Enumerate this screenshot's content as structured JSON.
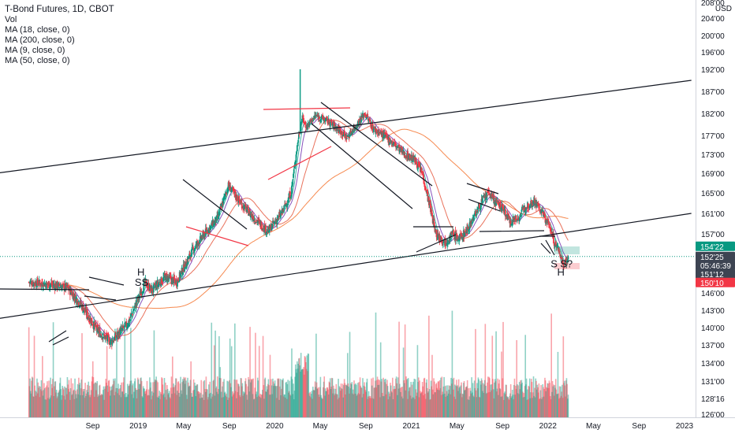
{
  "legend": {
    "title": "T-Bond Futures, 1D, CBOT",
    "lines": [
      "Vol",
      "MA (18, close, 0)",
      "MA (200, close, 0)",
      "MA (9, close, 0)",
      "MA (50, close, 0)"
    ]
  },
  "currency": "USD",
  "chart_data": {
    "type": "candlestick",
    "x_ticks": [
      {
        "label": "Sep",
        "t": 2018.667
      },
      {
        "label": "2019",
        "t": 2019.0
      },
      {
        "label": "May",
        "t": 2019.333
      },
      {
        "label": "Sep",
        "t": 2019.667
      },
      {
        "label": "2020",
        "t": 2020.0
      },
      {
        "label": "May",
        "t": 2020.333
      },
      {
        "label": "Sep",
        "t": 2020.667
      },
      {
        "label": "2021",
        "t": 2021.0
      },
      {
        "label": "May",
        "t": 2021.333
      },
      {
        "label": "Sep",
        "t": 2021.667
      },
      {
        "label": "2022",
        "t": 2022.0
      },
      {
        "label": "May",
        "t": 2022.333
      },
      {
        "label": "Sep",
        "t": 2022.667
      },
      {
        "label": "2023",
        "t": 2023.0
      }
    ],
    "y_ticks": [
      {
        "label": "208'00",
        "v": 208
      },
      {
        "label": "204'00",
        "v": 204
      },
      {
        "label": "200'00",
        "v": 200
      },
      {
        "label": "196'00",
        "v": 196
      },
      {
        "label": "192'00",
        "v": 192
      },
      {
        "label": "187'00",
        "v": 187
      },
      {
        "label": "182'00",
        "v": 182
      },
      {
        "label": "177'00",
        "v": 177
      },
      {
        "label": "173'00",
        "v": 173
      },
      {
        "label": "169'00",
        "v": 169
      },
      {
        "label": "165'00",
        "v": 165
      },
      {
        "label": "161'00",
        "v": 161
      },
      {
        "label": "157'00",
        "v": 157
      },
      {
        "label": "146'00",
        "v": 146
      },
      {
        "label": "143'00",
        "v": 143
      },
      {
        "label": "140'00",
        "v": 140
      },
      {
        "label": "137'00",
        "v": 137
      },
      {
        "label": "134'00",
        "v": 134
      },
      {
        "label": "131'00",
        "v": 131
      },
      {
        "label": "128'16",
        "v": 128.5
      },
      {
        "label": "126'00",
        "v": 126
      }
    ],
    "price_key_points": [
      {
        "t": 2018.2,
        "v": 148.0
      },
      {
        "t": 2018.35,
        "v": 147.6
      },
      {
        "t": 2018.48,
        "v": 147.0
      },
      {
        "t": 2018.58,
        "v": 144.0
      },
      {
        "t": 2018.7,
        "v": 139.5
      },
      {
        "t": 2018.8,
        "v": 137.5
      },
      {
        "t": 2018.92,
        "v": 140.5
      },
      {
        "t": 2019.0,
        "v": 145.0
      },
      {
        "t": 2019.05,
        "v": 147.8
      },
      {
        "t": 2019.1,
        "v": 146.5
      },
      {
        "t": 2019.2,
        "v": 149.0
      },
      {
        "t": 2019.28,
        "v": 148.0
      },
      {
        "t": 2019.4,
        "v": 154.0
      },
      {
        "t": 2019.5,
        "v": 157.5
      },
      {
        "t": 2019.58,
        "v": 160.0
      },
      {
        "t": 2019.66,
        "v": 166.5
      },
      {
        "t": 2019.75,
        "v": 163.0
      },
      {
        "t": 2019.85,
        "v": 160.0
      },
      {
        "t": 2019.95,
        "v": 157.5
      },
      {
        "t": 2020.05,
        "v": 161.0
      },
      {
        "t": 2020.12,
        "v": 165.0
      },
      {
        "t": 2020.17,
        "v": 176.0
      },
      {
        "t": 2020.2,
        "v": 181.0
      },
      {
        "t": 2020.23,
        "v": 179.0
      },
      {
        "t": 2020.3,
        "v": 181.5
      },
      {
        "t": 2020.4,
        "v": 180.0
      },
      {
        "t": 2020.48,
        "v": 178.0
      },
      {
        "t": 2020.53,
        "v": 176.5
      },
      {
        "t": 2020.6,
        "v": 179.5
      },
      {
        "t": 2020.66,
        "v": 182.0
      },
      {
        "t": 2020.72,
        "v": 178.5
      },
      {
        "t": 2020.8,
        "v": 177.0
      },
      {
        "t": 2020.88,
        "v": 175.0
      },
      {
        "t": 2020.95,
        "v": 173.0
      },
      {
        "t": 2021.02,
        "v": 172.0
      },
      {
        "t": 2021.08,
        "v": 169.0
      },
      {
        "t": 2021.13,
        "v": 163.0
      },
      {
        "t": 2021.18,
        "v": 157.0
      },
      {
        "t": 2021.25,
        "v": 155.5
      },
      {
        "t": 2021.3,
        "v": 157.0
      },
      {
        "t": 2021.35,
        "v": 156.0
      },
      {
        "t": 2021.4,
        "v": 157.5
      },
      {
        "t": 2021.47,
        "v": 161.0
      },
      {
        "t": 2021.52,
        "v": 163.5
      },
      {
        "t": 2021.57,
        "v": 165.0
      },
      {
        "t": 2021.62,
        "v": 163.0
      },
      {
        "t": 2021.67,
        "v": 162.0
      },
      {
        "t": 2021.72,
        "v": 159.5
      },
      {
        "t": 2021.78,
        "v": 160.0
      },
      {
        "t": 2021.84,
        "v": 162.5
      },
      {
        "t": 2021.9,
        "v": 163.5
      },
      {
        "t": 2021.96,
        "v": 161.0
      },
      {
        "t": 2022.02,
        "v": 158.0
      },
      {
        "t": 2022.05,
        "v": 155.0
      },
      {
        "t": 2022.08,
        "v": 154.0
      },
      {
        "t": 2022.1,
        "v": 152.0
      },
      {
        "t": 2022.12,
        "v": 151.5
      },
      {
        "t": 2022.15,
        "v": 152.6
      }
    ],
    "trendlines": [
      {
        "t1": 2017.96,
        "v1": 169.0,
        "t2": 2023.05,
        "v2": 189.5
      },
      {
        "t1": 2017.96,
        "v1": 141.5,
        "t2": 2023.05,
        "v2": 161.0
      }
    ],
    "annotations": [
      {
        "text": "H",
        "t": 2019.02,
        "v": 149.2
      },
      {
        "text": "S",
        "t": 2019.0,
        "v": 147.3
      },
      {
        "text": "S",
        "t": 2019.05,
        "v": 147.3
      },
      {
        "text": "S",
        "t": 2022.045,
        "v": 150.8
      },
      {
        "text": "S?",
        "t": 2022.135,
        "v": 150.8
      },
      {
        "text": "H",
        "t": 2022.095,
        "v": 149.2
      }
    ],
    "price_labels": [
      {
        "text": "154'22",
        "v": 154.69,
        "color": "#089981"
      },
      {
        "text": "152'25",
        "v": 152.78,
        "color": "#3d4452"
      },
      {
        "text": "05:46:39",
        "v": 152.1,
        "color": "#3d4452"
      },
      {
        "text": "151'12",
        "v": 151.38,
        "color": "#3d4452"
      },
      {
        "text": "150'10",
        "v": 150.31,
        "color": "#f23645"
      }
    ]
  }
}
